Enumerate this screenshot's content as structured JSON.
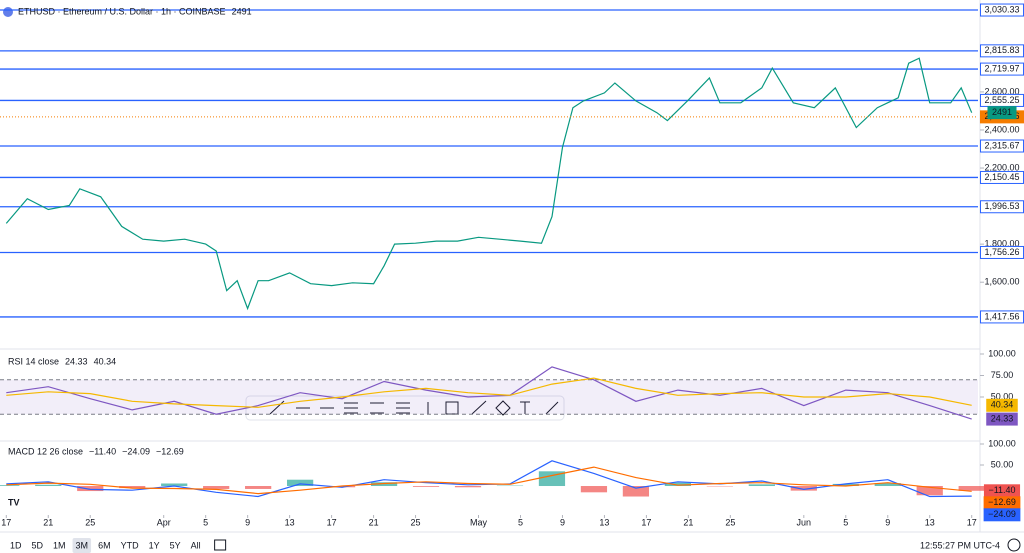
{
  "chart_data": [
    {
      "type": "line",
      "title": "ETHUSD · Ethereum / U.S. Dollar · 1h · COINBASE",
      "xlim": [
        -0.6,
        92.6
      ],
      "ylim": [
        1270,
        3062
      ],
      "yticks": [
        {
          "value": 2600,
          "label": "2,600.00"
        },
        {
          "value": 2400,
          "label": "2,400.00"
        },
        {
          "value": 2200,
          "label": "2,200.00"
        },
        {
          "value": 1800,
          "label": "1,800.00"
        },
        {
          "value": 1600,
          "label": "1,600.00"
        }
      ],
      "levels": [
        {
          "value": 3030.33,
          "label": "3,030.33"
        },
        {
          "value": 2815.83,
          "label": "2,815.83"
        },
        {
          "value": 2719.97,
          "label": "2,719.97"
        },
        {
          "value": 2555.25,
          "label": "2,555.25"
        },
        {
          "value": 2315.67,
          "label": "2,315.67"
        },
        {
          "value": 2150.45,
          "label": "2,150.45"
        },
        {
          "value": 1996.53,
          "label": "1,996.53"
        },
        {
          "value": 1756.26,
          "label": "1,756.26"
        },
        {
          "value": 1417.56,
          "label": "1,417.56"
        }
      ],
      "level_color": "#2962ff",
      "current_price": {
        "value": 2468.86,
        "label": "2,468.86"
      },
      "current_color": "#f57c00",
      "x": [
        0,
        2,
        4,
        6,
        7,
        9,
        11,
        13,
        15,
        17,
        19,
        20,
        21,
        22,
        23,
        24,
        25,
        27,
        29,
        31,
        33,
        35,
        36,
        37,
        39,
        41,
        43,
        45,
        47,
        49,
        51,
        52,
        53,
        54,
        55,
        57,
        58,
        60,
        62,
        63,
        65,
        67,
        68,
        70,
        72,
        73,
        75,
        77,
        79,
        81,
        83,
        85,
        86,
        87,
        88,
        90,
        91,
        92
      ],
      "series": [
        {
          "color": "#089981",
          "values": [
            1909,
            2039,
            1982,
            2003,
            2091,
            2049,
            1893,
            1826,
            1816,
            1826,
            1800,
            1764,
            1556,
            1608,
            1462,
            1608,
            1608,
            1649,
            1592,
            1582,
            1597,
            1592,
            1686,
            1800,
            1805,
            1816,
            1816,
            1836,
            1826,
            1816,
            1805,
            1945,
            2309,
            2517,
            2553,
            2595,
            2647,
            2553,
            2491,
            2449,
            2558,
            2673,
            2543,
            2543,
            2621,
            2725,
            2543,
            2517,
            2621,
            2413,
            2517,
            2569,
            2751,
            2777,
            2543,
            2543,
            2621,
            2491
          ]
        }
      ]
    },
    {
      "type": "line",
      "title": "RSI 14 close",
      "xlim": [
        -0.6,
        92.6
      ],
      "ylim": [
        0,
        100
      ],
      "yticks": [
        {
          "value": 100,
          "label": "100.00"
        },
        {
          "value": 75,
          "label": "75.00"
        },
        {
          "value": 50,
          "label": "50.00"
        }
      ],
      "band": [
        30,
        70
      ],
      "band_color": "#7e57c2",
      "x": [
        0,
        4,
        8,
        12,
        16,
        20,
        24,
        28,
        32,
        36,
        40,
        44,
        48,
        52,
        56,
        60,
        64,
        68,
        72,
        76,
        80,
        84,
        88,
        92
      ],
      "series": [
        {
          "color": "#7e57c2",
          "values": [
            55,
            62,
            48,
            35,
            45,
            30,
            40,
            55,
            48,
            68,
            58,
            50,
            52,
            85,
            70,
            45,
            58,
            52,
            60,
            40,
            58,
            55,
            40,
            24.33
          ]
        },
        {
          "color": "#f5b800",
          "values": [
            52,
            56,
            54,
            45,
            42,
            40,
            38,
            45,
            50,
            56,
            60,
            55,
            52,
            65,
            72,
            60,
            52,
            54,
            55,
            50,
            50,
            54,
            50,
            40.34
          ]
        }
      ]
    },
    {
      "type": "line",
      "title": "MACD 12 26 close",
      "xlim": [
        -0.6,
        92.6
      ],
      "ylim": [
        -69,
        100
      ],
      "yticks": [
        {
          "value": 100,
          "label": "100.00"
        },
        {
          "value": 50,
          "label": "50.00"
        }
      ],
      "xticks": [
        {
          "value": 0,
          "label": "17"
        },
        {
          "value": 4,
          "label": "21"
        },
        {
          "value": 8,
          "label": "25"
        },
        {
          "value": 15,
          "label": "Apr"
        },
        {
          "value": 19,
          "label": "5"
        },
        {
          "value": 23,
          "label": "9"
        },
        {
          "value": 27,
          "label": "13"
        },
        {
          "value": 31,
          "label": "17"
        },
        {
          "value": 35,
          "label": "21"
        },
        {
          "value": 39,
          "label": "25"
        },
        {
          "value": 45,
          "label": "May"
        },
        {
          "value": 49,
          "label": "5"
        },
        {
          "value": 53,
          "label": "9"
        },
        {
          "value": 57,
          "label": "13"
        },
        {
          "value": 61,
          "label": "17"
        },
        {
          "value": 65,
          "label": "21"
        },
        {
          "value": 69,
          "label": "25"
        },
        {
          "value": 76,
          "label": "Jun"
        },
        {
          "value": 80,
          "label": "5"
        },
        {
          "value": 84,
          "label": "9"
        },
        {
          "value": 88,
          "label": "13"
        },
        {
          "value": 92,
          "label": "17"
        }
      ],
      "x": [
        0,
        4,
        8,
        12,
        16,
        20,
        24,
        28,
        32,
        36,
        40,
        44,
        48,
        52,
        56,
        60,
        64,
        68,
        72,
        76,
        80,
        84,
        88,
        92
      ],
      "series": [
        {
          "type": "bar",
          "color": "#26a69a",
          "negative_color": "#ef5350",
          "values": [
            2,
            3,
            -12,
            -5,
            6,
            -7,
            -7,
            15,
            -3,
            9,
            -2,
            -3,
            1,
            35,
            -15,
            -25,
            8,
            -1,
            4,
            -11,
            5,
            7,
            -22,
            -11.4
          ],
          "value_labels": [
            null,
            null,
            null,
            null,
            null,
            null,
            null,
            null,
            null,
            null,
            null,
            null,
            null,
            null,
            null,
            null,
            null,
            null,
            null,
            null,
            null,
            null,
            null,
            "−11.40"
          ]
        },
        {
          "color": "#2962ff",
          "values": [
            5,
            10,
            -8,
            -10,
            0,
            -15,
            -25,
            5,
            -3,
            15,
            8,
            3,
            5,
            60,
            30,
            -5,
            10,
            5,
            12,
            -8,
            5,
            15,
            -25,
            -24.09
          ],
          "value_labels": [
            null,
            null,
            null,
            null,
            null,
            null,
            null,
            null,
            null,
            null,
            null,
            null,
            null,
            null,
            null,
            null,
            null,
            null,
            null,
            null,
            null,
            null,
            null,
            "−24.09"
          ]
        },
        {
          "color": "#ff6d00",
          "values": [
            3,
            7,
            4,
            -5,
            -6,
            -8,
            -18,
            -10,
            0,
            6,
            10,
            6,
            4,
            25,
            45,
            20,
            2,
            6,
            8,
            3,
            0,
            8,
            -3,
            -12.69
          ],
          "value_labels": [
            null,
            null,
            null,
            null,
            null,
            null,
            null,
            null,
            null,
            null,
            null,
            null,
            null,
            null,
            null,
            null,
            null,
            null,
            null,
            null,
            null,
            null,
            null,
            "−12.69"
          ]
        }
      ]
    }
  ],
  "toolbar": {
    "ranges": [
      "1D",
      "5D",
      "1M",
      "3M",
      "6M",
      "YTD",
      "1Y",
      "5Y",
      "All"
    ],
    "active": "3M",
    "clock": "12:55:27 PM UTC-4"
  }
}
